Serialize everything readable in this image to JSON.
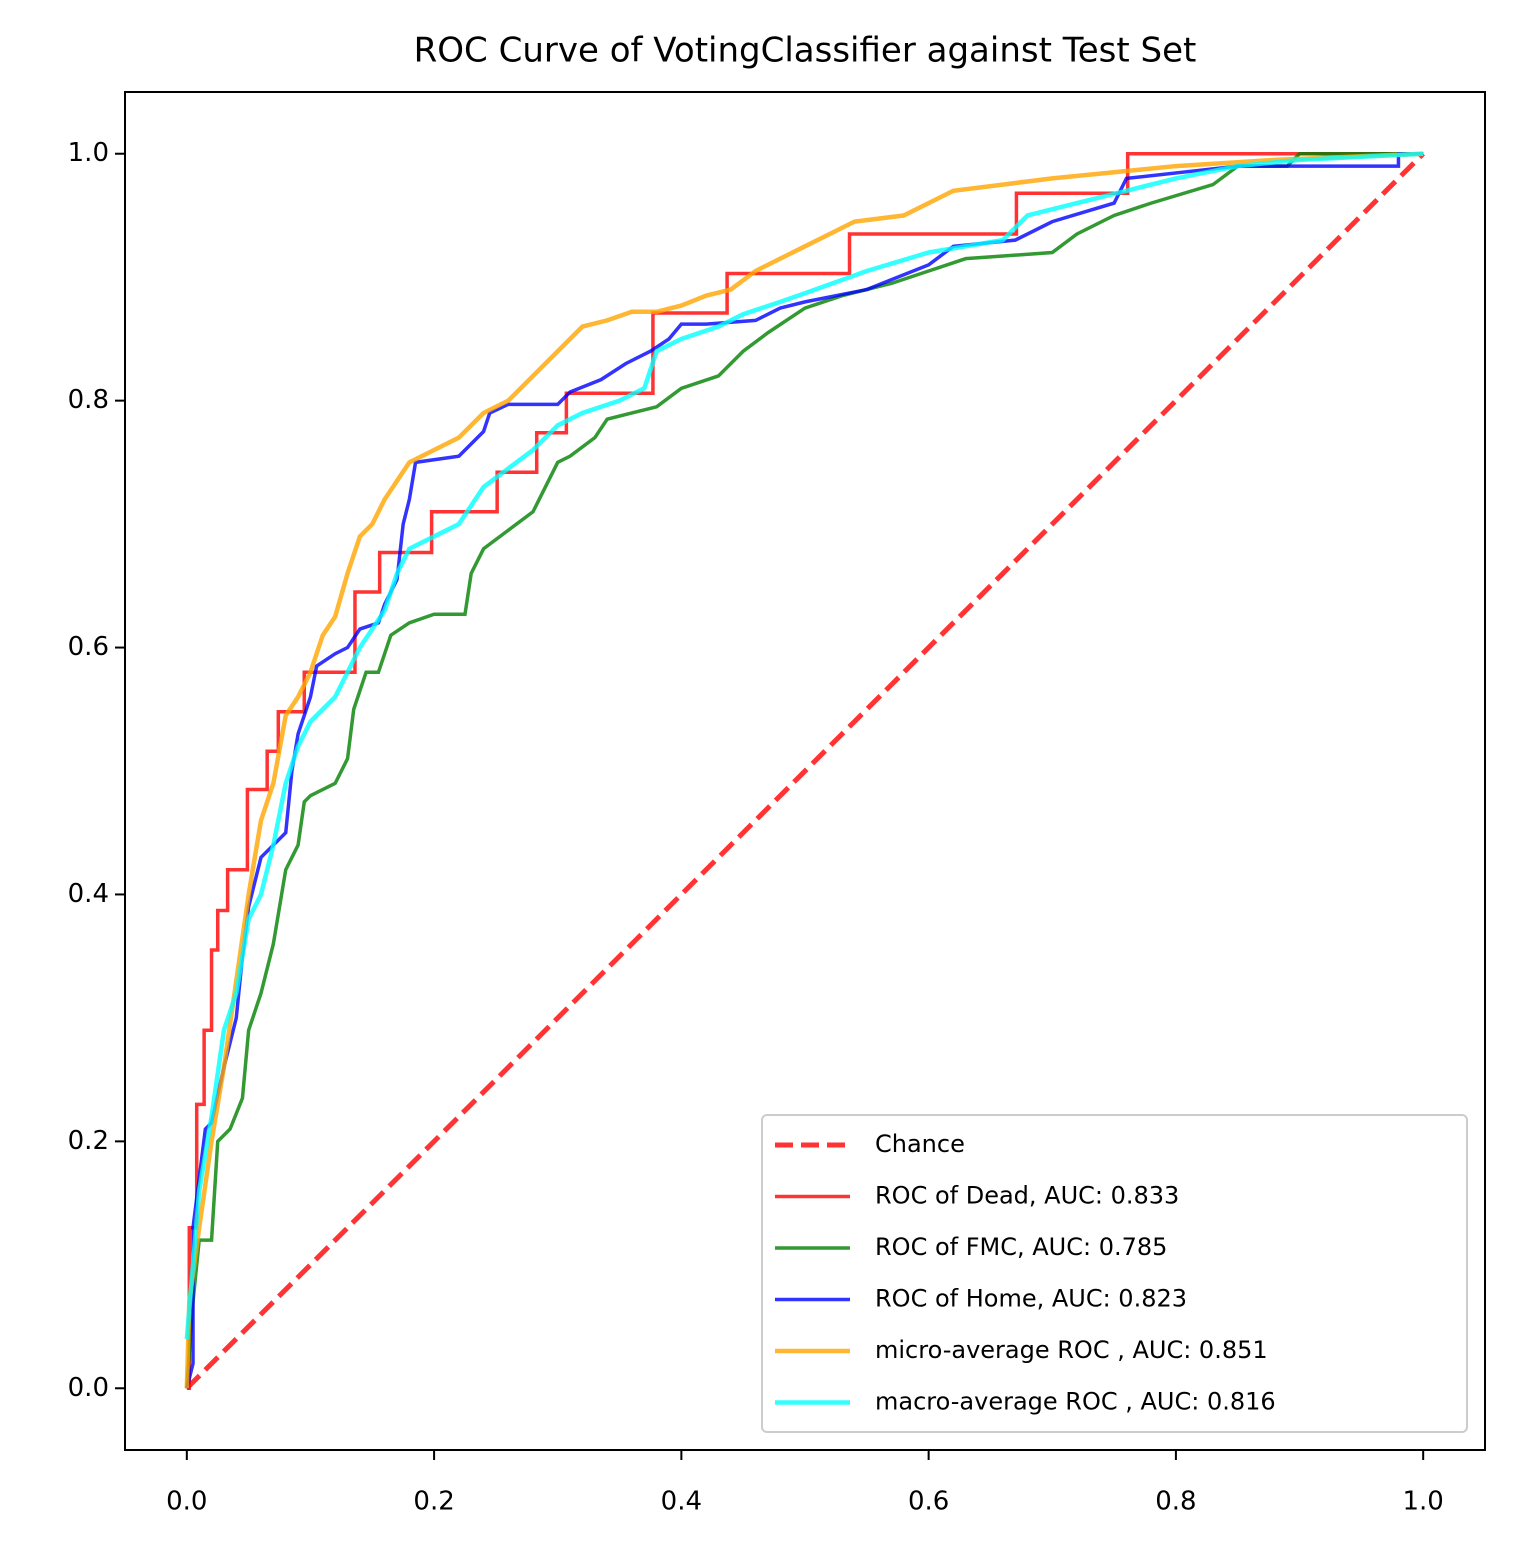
{
  "chart_data": {
    "type": "line",
    "title": "ROC Curve of VotingClassifier against Test Set",
    "xlim": [
      -0.05,
      1.05
    ],
    "ylim": [
      -0.05,
      1.05
    ],
    "xticks": [
      {
        "value": 0,
        "label": "0.0"
      },
      0.2,
      0.4,
      0.6,
      0.8,
      {
        "value": 1,
        "label": "1.0"
      }
    ],
    "yticks": [
      {
        "value": 0,
        "label": "0.0"
      },
      0.2,
      0.4,
      0.6,
      0.8,
      {
        "value": 1,
        "label": "1.0"
      }
    ],
    "grid": false,
    "legend": "lower right",
    "series": [
      {
        "name": "Chance",
        "color": "red",
        "linestyle": "dashed",
        "x": [
          0,
          1
        ],
        "values": [
          0,
          1
        ]
      },
      {
        "name": "ROC of Dead, AUC: 0.833",
        "color": "red",
        "linestyle": "solid",
        "x": [
          0,
          0.002,
          0.002,
          0.008,
          0.008,
          0.014,
          0.014,
          0.02,
          0.02,
          0.025,
          0.025,
          0.033,
          0.033,
          0.049,
          0.049,
          0.065,
          0.065,
          0.074,
          0.074,
          0.095,
          0.095,
          0.136,
          0.136,
          0.156,
          0.156,
          0.198,
          0.198,
          0.251,
          0.251,
          0.283,
          0.283,
          0.307,
          0.307,
          0.377,
          0.377,
          0.437,
          0.437,
          0.536,
          0.536,
          0.671,
          0.671,
          0.761,
          0.761,
          1.0
        ],
        "values": [
          0,
          0,
          0.13,
          0.13,
          0.23,
          0.23,
          0.29,
          0.29,
          0.355,
          0.355,
          0.387,
          0.387,
          0.42,
          0.42,
          0.485,
          0.485,
          0.516,
          0.516,
          0.548,
          0.548,
          0.58,
          0.58,
          0.645,
          0.645,
          0.677,
          0.677,
          0.71,
          0.71,
          0.742,
          0.742,
          0.774,
          0.774,
          0.806,
          0.806,
          0.871,
          0.871,
          0.903,
          0.903,
          0.935,
          0.935,
          0.968,
          0.968,
          1.0,
          1.0
        ]
      },
      {
        "name": "ROC of FMC, AUC: 0.785",
        "color": "green",
        "linestyle": "solid",
        "x": [
          0,
          0.005,
          0.01,
          0.02,
          0.025,
          0.035,
          0.045,
          0.05,
          0.06,
          0.07,
          0.08,
          0.09,
          0.095,
          0.1,
          0.12,
          0.13,
          0.135,
          0.145,
          0.155,
          0.165,
          0.18,
          0.2,
          0.225,
          0.23,
          0.24,
          0.26,
          0.28,
          0.29,
          0.3,
          0.31,
          0.33,
          0.34,
          0.36,
          0.38,
          0.4,
          0.43,
          0.45,
          0.47,
          0.5,
          0.53,
          0.57,
          0.6,
          0.63,
          0.7,
          0.72,
          0.75,
          0.78,
          0.83,
          0.85,
          0.89,
          0.9,
          1.0
        ],
        "values": [
          0,
          0.07,
          0.12,
          0.12,
          0.2,
          0.21,
          0.235,
          0.29,
          0.32,
          0.36,
          0.42,
          0.44,
          0.475,
          0.48,
          0.49,
          0.51,
          0.55,
          0.58,
          0.58,
          0.61,
          0.62,
          0.627,
          0.627,
          0.66,
          0.68,
          0.695,
          0.71,
          0.73,
          0.75,
          0.755,
          0.77,
          0.785,
          0.79,
          0.795,
          0.81,
          0.82,
          0.84,
          0.855,
          0.875,
          0.885,
          0.895,
          0.905,
          0.915,
          0.92,
          0.935,
          0.95,
          0.96,
          0.975,
          0.99,
          0.99,
          1.0,
          1.0
        ]
      },
      {
        "name": "ROC of Home, AUC: 0.823",
        "color": "blue",
        "linestyle": "solid",
        "x": [
          0,
          0.005,
          0.005,
          0.01,
          0.015,
          0.02,
          0.03,
          0.04,
          0.045,
          0.05,
          0.06,
          0.07,
          0.08,
          0.085,
          0.09,
          0.1,
          0.105,
          0.12,
          0.13,
          0.14,
          0.155,
          0.16,
          0.17,
          0.175,
          0.18,
          0.185,
          0.22,
          0.24,
          0.245,
          0.26,
          0.3,
          0.31,
          0.335,
          0.355,
          0.375,
          0.39,
          0.4,
          0.42,
          0.46,
          0.48,
          0.5,
          0.55,
          0.6,
          0.62,
          0.67,
          0.7,
          0.75,
          0.76,
          0.85,
          0.98,
          0.98,
          1.0
        ],
        "values": [
          0,
          0.02,
          0.13,
          0.17,
          0.21,
          0.215,
          0.26,
          0.3,
          0.35,
          0.39,
          0.43,
          0.44,
          0.45,
          0.5,
          0.53,
          0.56,
          0.585,
          0.595,
          0.6,
          0.615,
          0.62,
          0.635,
          0.655,
          0.7,
          0.72,
          0.75,
          0.755,
          0.775,
          0.79,
          0.797,
          0.797,
          0.807,
          0.817,
          0.83,
          0.84,
          0.85,
          0.862,
          0.862,
          0.865,
          0.875,
          0.88,
          0.89,
          0.91,
          0.925,
          0.93,
          0.945,
          0.96,
          0.98,
          0.99,
          0.99,
          1.0,
          1.0
        ]
      },
      {
        "name": "micro-average ROC , AUC: 0.851",
        "color": "orange",
        "linestyle": "solid",
        "x": [
          0,
          0.002,
          0.01,
          0.02,
          0.03,
          0.04,
          0.05,
          0.06,
          0.07,
          0.08,
          0.09,
          0.1,
          0.11,
          0.12,
          0.13,
          0.14,
          0.15,
          0.16,
          0.18,
          0.2,
          0.22,
          0.24,
          0.26,
          0.28,
          0.3,
          0.32,
          0.34,
          0.36,
          0.38,
          0.4,
          0.42,
          0.44,
          0.46,
          0.48,
          0.5,
          0.52,
          0.54,
          0.58,
          0.6,
          0.62,
          0.66,
          0.7,
          0.75,
          0.8,
          0.88,
          1.0
        ],
        "values": [
          0,
          0.07,
          0.13,
          0.2,
          0.26,
          0.33,
          0.4,
          0.46,
          0.49,
          0.545,
          0.56,
          0.58,
          0.61,
          0.625,
          0.66,
          0.69,
          0.7,
          0.72,
          0.75,
          0.76,
          0.77,
          0.79,
          0.8,
          0.82,
          0.84,
          0.86,
          0.865,
          0.872,
          0.872,
          0.877,
          0.885,
          0.89,
          0.905,
          0.915,
          0.925,
          0.935,
          0.945,
          0.95,
          0.96,
          0.97,
          0.975,
          0.98,
          0.985,
          0.99,
          0.995,
          1.0
        ]
      },
      {
        "name": "macro-average ROC , AUC: 0.816",
        "color": "aqua",
        "linestyle": "solid",
        "x": [
          0,
          0.005,
          0.01,
          0.02,
          0.03,
          0.04,
          0.05,
          0.06,
          0.07,
          0.08,
          0.09,
          0.1,
          0.12,
          0.13,
          0.14,
          0.16,
          0.17,
          0.18,
          0.2,
          0.22,
          0.24,
          0.26,
          0.28,
          0.3,
          0.32,
          0.35,
          0.37,
          0.38,
          0.4,
          0.43,
          0.45,
          0.48,
          0.5,
          0.55,
          0.6,
          0.66,
          0.68,
          0.72,
          0.76,
          0.8,
          0.85,
          0.9,
          1.0
        ],
        "values": [
          0.04,
          0.1,
          0.16,
          0.22,
          0.29,
          0.32,
          0.38,
          0.4,
          0.44,
          0.49,
          0.52,
          0.54,
          0.56,
          0.58,
          0.6,
          0.63,
          0.66,
          0.68,
          0.69,
          0.7,
          0.73,
          0.745,
          0.76,
          0.78,
          0.79,
          0.8,
          0.81,
          0.84,
          0.85,
          0.86,
          0.87,
          0.88,
          0.887,
          0.905,
          0.92,
          0.93,
          0.95,
          0.96,
          0.97,
          0.98,
          0.99,
          0.995,
          1.0
        ]
      }
    ]
  }
}
